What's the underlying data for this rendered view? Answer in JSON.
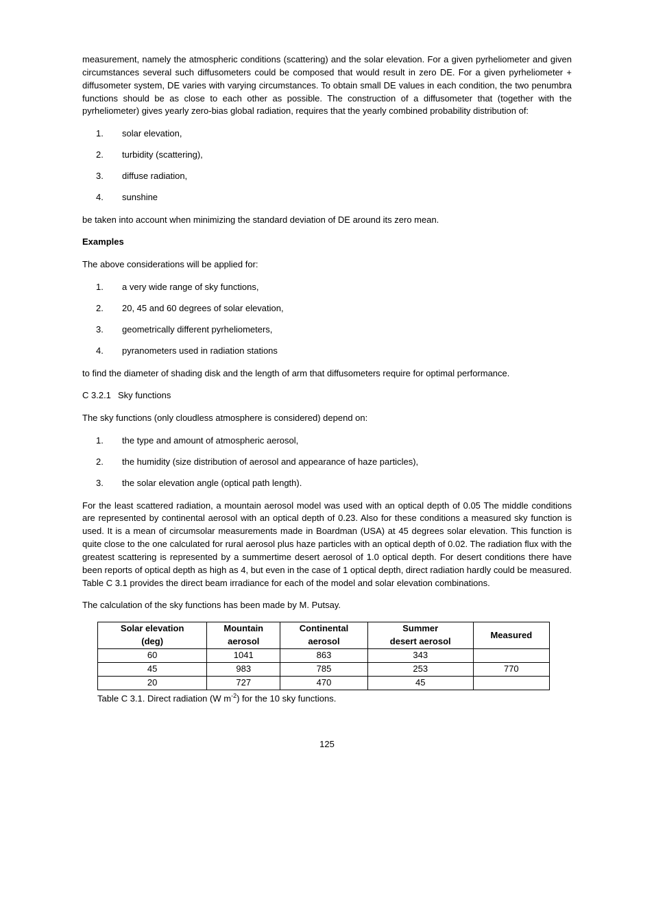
{
  "intro_para": "measurement, namely the atmospheric conditions (scattering) and the solar elevation. For a given pyrheliometer and given circumstances several such diffusometers could be composed that would result in zero DE. For a given pyrheliometer + diffusometer system, DE varies with varying circumstances. To obtain small DE values in each condition, the two penumbra functions should be as close to each other as possible. The construction of a diffusometer that (together with the pyrheliometer) gives yearly zero-bias global radiation, requires that the yearly combined probability distribution of:",
  "list1": [
    "solar elevation,",
    "turbidity (scattering),",
    "diffuse radiation,",
    "sunshine"
  ],
  "after_list1": "be taken into account when minimizing the standard deviation of DE around its zero mean.",
  "examples_title": "Examples",
  "examples_intro": "The above considerations will be applied for:",
  "list2": [
    "a very wide range of sky functions,",
    "20, 45 and 60 degrees of solar elevation,",
    "geometrically different pyrheliometers,",
    "pyranometers used in radiation stations"
  ],
  "after_list2": "to find the diameter of shading disk and the length of arm that diffusometers require for optimal performance.",
  "section_num": "C 3.2.1",
  "section_title": "Sky functions",
  "sky_intro": "The sky functions (only cloudless atmosphere is considered) depend on:",
  "list3": [
    "the type and amount of atmospheric aerosol,",
    "the humidity (size distribution of aerosol and appearance of haze particles),",
    "the solar elevation angle (optical path length)."
  ],
  "sky_para": "For the least scattered radiation, a mountain aerosol model was used with an optical depth of 0.05 The middle conditions are represented by continental aerosol with an optical depth of 0.23. Also for these conditions  a measured sky function is used. It is a mean of circumsolar measurements made in Boardman (USA) at 45 degrees solar elevation. This function is quite close to the one calculated for rural aerosol plus haze particles with an optical depth of 0.02. The radiation flux with the greatest scattering is represented by a summertime desert aerosol of 1.0 optical depth. For desert conditions there have been reports of optical depth  as high as 4, but even in the case of 1 optical depth, direct radiation hardly could be measured. Table C 3.1 provides the direct beam irradiance for each of the model and solar elevation combinations.",
  "calc_para": "The calculation of the sky functions has been made by M. Putsay.",
  "table": {
    "columns": [
      {
        "line1": "Solar elevation",
        "line2": "(deg)"
      },
      {
        "line1": "Mountain",
        "line2": "aerosol"
      },
      {
        "line1": "Continental",
        "line2": "aerosol"
      },
      {
        "line1": "Summer",
        "line2": "desert aerosol"
      },
      {
        "line1": "Measured",
        "line2": ""
      }
    ],
    "rows": [
      [
        "60",
        "1041",
        "863",
        "343",
        ""
      ],
      [
        "45",
        "983",
        "785",
        "253",
        "770"
      ],
      [
        "20",
        "727",
        "470",
        "45",
        ""
      ]
    ]
  },
  "table_caption_pre": "Table C 3.1. Direct radiation (W m",
  "table_caption_sup": "-2",
  "table_caption_post": ") for the 10 sky functions.",
  "page_number": "125"
}
